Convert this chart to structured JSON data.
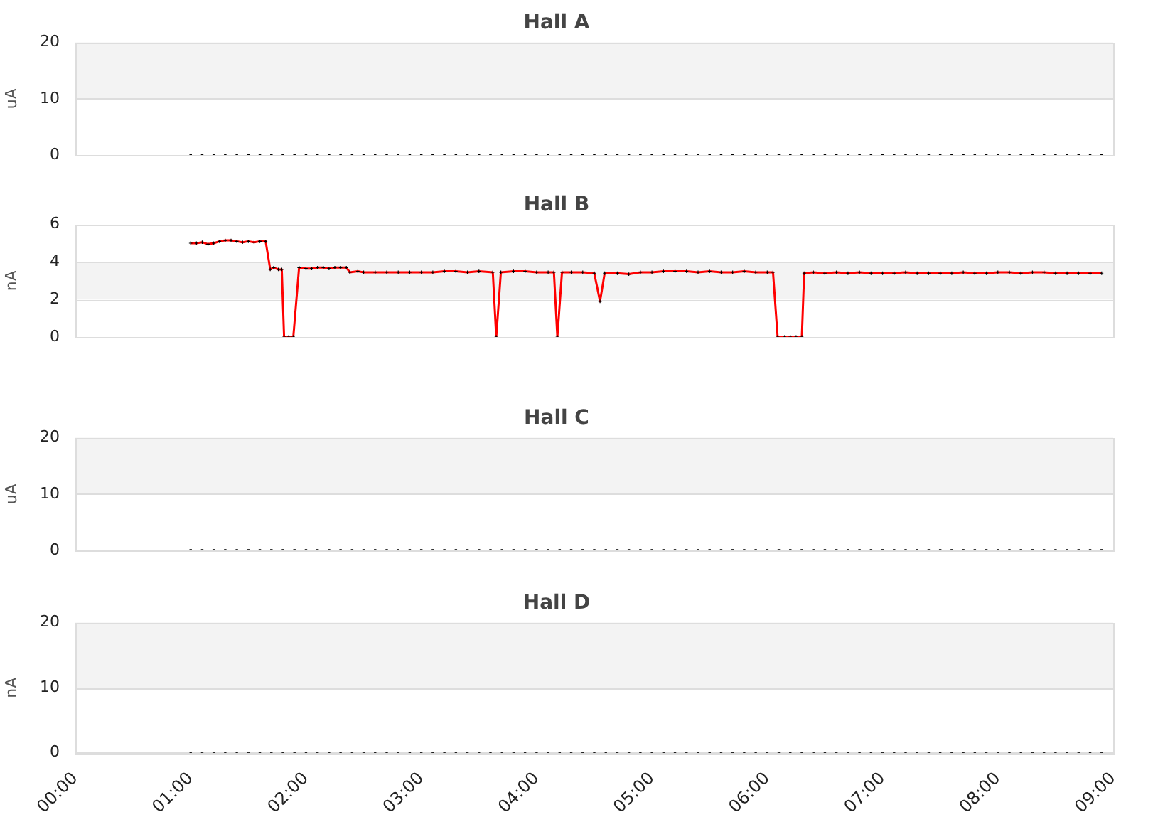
{
  "chart_data": [
    {
      "type": "scatter",
      "title": "Hall A",
      "ylabel": "uA",
      "bands": [
        {
          "axis": "y",
          "from": 10,
          "to": 20,
          "color": "#f3f3f3"
        }
      ],
      "xlim": [
        0,
        9
      ],
      "ylim": [
        0,
        20
      ],
      "yticks": [
        0,
        10,
        20
      ],
      "grid": "y",
      "marker": "square",
      "legend": false,
      "tick_labels": "y",
      "series": [
        {
          "color": "#000000",
          "x": [
            1.0,
            1.1,
            1.2,
            1.3,
            1.4,
            1.5,
            1.6,
            1.7,
            1.8,
            1.9,
            2.0,
            2.1,
            2.2,
            2.3,
            2.4,
            2.5,
            2.6,
            2.7,
            2.8,
            2.9,
            3.0,
            3.1,
            3.2,
            3.3,
            3.4,
            3.5,
            3.6,
            3.7,
            3.8,
            3.9,
            4.0,
            4.1,
            4.2,
            4.3,
            4.4,
            4.5,
            4.6,
            4.7,
            4.8,
            4.9,
            5.0,
            5.1,
            5.2,
            5.3,
            5.4,
            5.5,
            5.6,
            5.7,
            5.8,
            5.9,
            6.0,
            6.1,
            6.2,
            6.3,
            6.4,
            6.5,
            6.6,
            6.7,
            6.8,
            6.9,
            7.0,
            7.1,
            7.2,
            7.3,
            7.4,
            7.5,
            7.6,
            7.7,
            7.8,
            7.9,
            8.0,
            8.1,
            8.2,
            8.3,
            8.4,
            8.5,
            8.6,
            8.7,
            8.8,
            8.9
          ],
          "values": [
            0,
            0,
            0,
            0,
            0,
            0,
            0,
            0,
            0,
            0,
            0,
            0,
            0,
            0,
            0,
            0,
            0,
            0,
            0,
            0,
            0,
            0,
            0,
            0,
            0,
            0,
            0,
            0,
            0,
            0,
            0,
            0,
            0,
            0,
            0,
            0,
            0,
            0,
            0,
            0,
            0,
            0,
            0,
            0,
            0,
            0,
            0,
            0,
            0,
            0,
            0,
            0,
            0,
            0,
            0,
            0,
            0,
            0,
            0,
            0,
            0,
            0,
            0,
            0,
            0,
            0,
            0,
            0,
            0,
            0,
            0,
            0,
            0,
            0,
            0,
            0,
            0,
            0,
            0,
            0
          ]
        }
      ]
    },
    {
      "type": "line",
      "title": "Hall B",
      "ylabel": "nA",
      "bands": [
        {
          "axis": "y",
          "from": 2,
          "to": 4,
          "color": "#f3f3f3"
        }
      ],
      "xlim": [
        0,
        9
      ],
      "ylim": [
        0,
        6
      ],
      "yticks": [
        0,
        2,
        4,
        6
      ],
      "grid": "y",
      "marker": "cross",
      "legend": false,
      "tick_labels": "y",
      "series": [
        {
          "color": "#ff0000",
          "x": [
            1.0,
            1.05,
            1.1,
            1.15,
            1.2,
            1.25,
            1.3,
            1.35,
            1.4,
            1.45,
            1.5,
            1.55,
            1.6,
            1.65,
            1.69,
            1.72,
            1.76,
            1.79,
            1.81,
            1.85,
            1.89,
            1.94,
            2.0,
            2.05,
            2.1,
            2.15,
            2.2,
            2.25,
            2.3,
            2.35,
            2.38,
            2.45,
            2.5,
            2.6,
            2.7,
            2.8,
            2.9,
            3.0,
            3.1,
            3.2,
            3.3,
            3.4,
            3.5,
            3.62,
            3.65,
            3.69,
            3.8,
            3.9,
            4.0,
            4.1,
            4.15,
            4.18,
            4.22,
            4.3,
            4.4,
            4.5,
            4.55,
            4.59,
            4.7,
            4.8,
            4.9,
            5.0,
            5.1,
            5.2,
            5.3,
            5.4,
            5.5,
            5.6,
            5.7,
            5.8,
            5.9,
            6.0,
            6.05,
            6.09,
            6.15,
            6.2,
            6.25,
            6.3,
            6.32,
            6.4,
            6.5,
            6.6,
            6.7,
            6.8,
            6.9,
            7.0,
            7.1,
            7.2,
            7.3,
            7.4,
            7.5,
            7.6,
            7.7,
            7.8,
            7.9,
            8.0,
            8.1,
            8.2,
            8.3,
            8.4,
            8.5,
            8.6,
            8.7,
            8.8,
            8.9
          ],
          "values": [
            5.0,
            5.0,
            5.05,
            4.95,
            5.0,
            5.1,
            5.15,
            5.15,
            5.1,
            5.05,
            5.1,
            5.05,
            5.1,
            5.1,
            3.6,
            3.7,
            3.6,
            3.6,
            0,
            0,
            0,
            3.7,
            3.65,
            3.65,
            3.7,
            3.7,
            3.65,
            3.7,
            3.7,
            3.7,
            3.45,
            3.5,
            3.45,
            3.45,
            3.45,
            3.45,
            3.45,
            3.45,
            3.45,
            3.5,
            3.5,
            3.45,
            3.5,
            3.45,
            0,
            3.45,
            3.5,
            3.5,
            3.45,
            3.45,
            3.45,
            0,
            3.45,
            3.45,
            3.45,
            3.4,
            1.9,
            3.4,
            3.4,
            3.35,
            3.45,
            3.45,
            3.5,
            3.5,
            3.5,
            3.45,
            3.5,
            3.45,
            3.45,
            3.5,
            3.45,
            3.45,
            3.45,
            0,
            0,
            0,
            0,
            0,
            3.4,
            3.45,
            3.4,
            3.45,
            3.4,
            3.45,
            3.4,
            3.4,
            3.4,
            3.45,
            3.4,
            3.4,
            3.4,
            3.4,
            3.45,
            3.4,
            3.4,
            3.45,
            3.45,
            3.4,
            3.45,
            3.45,
            3.4,
            3.4,
            3.4,
            3.4,
            3.4
          ]
        }
      ]
    },
    {
      "type": "scatter",
      "title": "Hall C",
      "ylabel": "uA",
      "bands": [
        {
          "axis": "y",
          "from": 10,
          "to": 20,
          "color": "#f3f3f3"
        }
      ],
      "xlim": [
        0,
        9
      ],
      "ylim": [
        0,
        20
      ],
      "yticks": [
        0,
        10,
        20
      ],
      "grid": "y",
      "marker": "square",
      "legend": false,
      "tick_labels": "y",
      "series": [
        {
          "color": "#000000",
          "x": [
            1.0,
            1.1,
            1.2,
            1.3,
            1.4,
            1.5,
            1.6,
            1.7,
            1.8,
            1.9,
            2.0,
            2.1,
            2.2,
            2.3,
            2.4,
            2.5,
            2.6,
            2.7,
            2.8,
            2.9,
            3.0,
            3.1,
            3.2,
            3.3,
            3.4,
            3.5,
            3.6,
            3.7,
            3.8,
            3.9,
            4.0,
            4.1,
            4.2,
            4.3,
            4.4,
            4.5,
            4.6,
            4.7,
            4.8,
            4.9,
            5.0,
            5.1,
            5.2,
            5.3,
            5.4,
            5.5,
            5.6,
            5.7,
            5.8,
            5.9,
            6.0,
            6.1,
            6.2,
            6.3,
            6.4,
            6.5,
            6.6,
            6.7,
            6.8,
            6.9,
            7.0,
            7.1,
            7.2,
            7.3,
            7.4,
            7.5,
            7.6,
            7.7,
            7.8,
            7.9,
            8.0,
            8.1,
            8.2,
            8.3,
            8.4,
            8.5,
            8.6,
            8.7,
            8.8,
            8.9
          ],
          "values": [
            0,
            0,
            0,
            0,
            0,
            0,
            0,
            0,
            0,
            0,
            0,
            0,
            0,
            0,
            0,
            0,
            0,
            0,
            0,
            0,
            0,
            0,
            0,
            0,
            0,
            0,
            0,
            0,
            0,
            0,
            0,
            0,
            0,
            0,
            0,
            0,
            0,
            0,
            0,
            0,
            0,
            0,
            0,
            0,
            0,
            0,
            0,
            0,
            0,
            0,
            0,
            0,
            0,
            0,
            0,
            0,
            0,
            0,
            0,
            0,
            0,
            0,
            0,
            0,
            0,
            0,
            0,
            0,
            0,
            0,
            0,
            0,
            0,
            0,
            0,
            0,
            0,
            0,
            0,
            0
          ]
        }
      ]
    },
    {
      "type": "scatter",
      "title": "Hall D",
      "ylabel": "nA",
      "bands": [
        {
          "axis": "y",
          "from": 10,
          "to": 20,
          "color": "#f3f3f3"
        }
      ],
      "xlim": [
        0,
        9
      ],
      "ylim": [
        0,
        20
      ],
      "yticks": [
        0,
        10,
        20
      ],
      "grid": "y",
      "marker": "square",
      "legend": false,
      "xticks": [
        {
          "value": 0,
          "label": "00:00"
        },
        {
          "value": 1,
          "label": "01:00"
        },
        {
          "value": 2,
          "label": "02:00"
        },
        {
          "value": 3,
          "label": "03:00"
        },
        {
          "value": 4,
          "label": "04:00"
        },
        {
          "value": 5,
          "label": "05:00"
        },
        {
          "value": 6,
          "label": "06:00"
        },
        {
          "value": 7,
          "label": "07:00"
        },
        {
          "value": 8,
          "label": "08:00"
        },
        {
          "value": 9,
          "label": "09:00"
        }
      ],
      "series": [
        {
          "color": "#000000",
          "x": [
            1.0,
            1.1,
            1.2,
            1.3,
            1.4,
            1.5,
            1.6,
            1.7,
            1.8,
            1.9,
            2.0,
            2.1,
            2.2,
            2.3,
            2.4,
            2.5,
            2.6,
            2.7,
            2.8,
            2.9,
            3.0,
            3.1,
            3.2,
            3.3,
            3.4,
            3.5,
            3.6,
            3.7,
            3.8,
            3.9,
            4.0,
            4.1,
            4.2,
            4.3,
            4.4,
            4.5,
            4.6,
            4.7,
            4.8,
            4.9,
            5.0,
            5.1,
            5.2,
            5.3,
            5.4,
            5.5,
            5.6,
            5.7,
            5.8,
            5.9,
            6.0,
            6.1,
            6.2,
            6.3,
            6.4,
            6.5,
            6.6,
            6.7,
            6.8,
            6.9,
            7.0,
            7.1,
            7.2,
            7.3,
            7.4,
            7.5,
            7.6,
            7.7,
            7.8,
            7.9,
            8.0,
            8.1,
            8.2,
            8.3,
            8.4,
            8.5,
            8.6,
            8.7,
            8.8,
            8.9
          ],
          "values": [
            0,
            0,
            0,
            0,
            0,
            0,
            0,
            0,
            0,
            0,
            0,
            0,
            0,
            0,
            0,
            0,
            0,
            0,
            0,
            0,
            0,
            0,
            0,
            0,
            0,
            0,
            0,
            0,
            0,
            0,
            0,
            0,
            0,
            0,
            0,
            0,
            0,
            0,
            0,
            0,
            0,
            0,
            0,
            0,
            0,
            0,
            0,
            0,
            0,
            0,
            0,
            0,
            0,
            0,
            0,
            0,
            0,
            0,
            0,
            0,
            0,
            0,
            0,
            0,
            0,
            0,
            0,
            0,
            0,
            0,
            0,
            0,
            0,
            0,
            0,
            0,
            0,
            0,
            0,
            0
          ]
        }
      ]
    }
  ]
}
